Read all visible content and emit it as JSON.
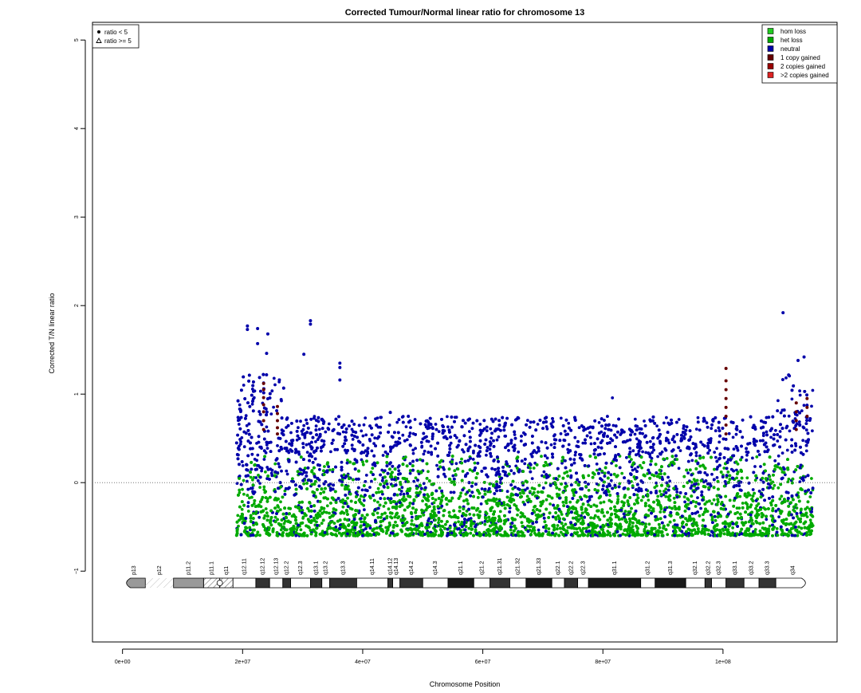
{
  "chart_data": {
    "type": "scatter",
    "title": "Corrected Tumour/Normal linear ratio for chromosome  13",
    "xlabel": "Chromosome Position",
    "ylabel": "Corrected T/N linear ratio",
    "xlim": [
      -5000000,
      119000000
    ],
    "ylim": [
      -1.8,
      5.2
    ],
    "x_ticks": [
      0,
      20000000,
      40000000,
      60000000,
      80000000,
      100000000
    ],
    "x_tick_labels": [
      "0e+00",
      "2e+07",
      "4e+07",
      "6e+07",
      "8e+07",
      "1e+08"
    ],
    "y_ticks": [
      -1,
      0,
      1,
      2,
      3,
      4,
      5
    ],
    "y_tick_labels": [
      "−1",
      "0",
      "1",
      "2",
      "3",
      "4",
      "5"
    ],
    "reference_line_y": 0,
    "shape_legend": {
      "position": "top-left",
      "entries": [
        {
          "label": "ratio < 5",
          "symbol": "filled-circle"
        },
        {
          "label": "ratio >= 5",
          "symbol": "open-triangle"
        }
      ]
    },
    "legend": {
      "position": "top-right",
      "entries": [
        {
          "label": "hom loss",
          "color": "#22cc22"
        },
        {
          "label": "het loss",
          "color": "#00aa00"
        },
        {
          "label": "neutral",
          "color": "#0000aa"
        },
        {
          "label": "1 copy gained",
          "color": "#660000"
        },
        {
          "label": "2 copies gained",
          "color": "#990000"
        },
        {
          "label": ">2 copies gained",
          "color": "#dd2222"
        }
      ]
    },
    "data_x_range": [
      19000000,
      115000000
    ],
    "outliers": [
      {
        "x": 20800000,
        "y": 1.77
      },
      {
        "x": 20800000,
        "y": 1.73
      },
      {
        "x": 22500000,
        "y": 1.74
      },
      {
        "x": 22500000,
        "y": 1.57
      },
      {
        "x": 24200000,
        "y": 1.68
      },
      {
        "x": 24000000,
        "y": 1.46
      },
      {
        "x": 31300000,
        "y": 1.83
      },
      {
        "x": 31300000,
        "y": 1.79
      },
      {
        "x": 30200000,
        "y": 1.45
      },
      {
        "x": 36200000,
        "y": 1.35
      },
      {
        "x": 36200000,
        "y": 1.3
      },
      {
        "x": 36200000,
        "y": 1.16
      },
      {
        "x": 110000000,
        "y": 1.92
      },
      {
        "x": 113500000,
        "y": 1.42
      },
      {
        "x": 112500000,
        "y": 1.38
      }
    ],
    "gained_clusters": [
      {
        "x": 23500000,
        "y_values": [
          0.6,
          0.7,
          0.8,
          0.88,
          0.96,
          1.05,
          1.12
        ]
      },
      {
        "x": 25800000,
        "y_values": [
          0.55,
          0.62,
          0.7,
          0.78,
          0.86
        ]
      },
      {
        "x": 100500000,
        "y_values": [
          0.55,
          0.65,
          0.75,
          0.85,
          0.95,
          1.05,
          1.15,
          1.29
        ]
      },
      {
        "x": 112200000,
        "y_values": [
          0.6,
          0.7,
          0.8,
          0.9
        ]
      },
      {
        "x": 114000000,
        "y_values": [
          0.75,
          0.85,
          0.95
        ]
      }
    ],
    "ideogram": {
      "bands": [
        {
          "name": "p13",
          "start": 0,
          "end": 3800000,
          "stain": "gpos50"
        },
        {
          "name": "p12",
          "start": 3800000,
          "end": 8500000,
          "stain": "stalk"
        },
        {
          "name": "p11.2",
          "start": 8500000,
          "end": 13500000,
          "stain": "gpos50"
        },
        {
          "name": "p11.1",
          "start": 13500000,
          "end": 16200000,
          "stain": "acen"
        },
        {
          "name": "q11",
          "start": 16200000,
          "end": 18400000,
          "stain": "acen"
        },
        {
          "name": "q12.11",
          "start": 18400000,
          "end": 22200000,
          "stain": "gneg"
        },
        {
          "name": "q12.12",
          "start": 22200000,
          "end": 24500000,
          "stain": "gpos75"
        },
        {
          "name": "q12.13",
          "start": 24500000,
          "end": 26700000,
          "stain": "gneg"
        },
        {
          "name": "q12.2",
          "start": 26700000,
          "end": 28000000,
          "stain": "gpos75"
        },
        {
          "name": "q12.3",
          "start": 28000000,
          "end": 31300000,
          "stain": "gneg"
        },
        {
          "name": "q13.1",
          "start": 31300000,
          "end": 33200000,
          "stain": "gpos75"
        },
        {
          "name": "q13.2",
          "start": 33200000,
          "end": 34500000,
          "stain": "gneg"
        },
        {
          "name": "q13.3",
          "start": 34500000,
          "end": 39000000,
          "stain": "gpos75"
        },
        {
          "name": "q14.11",
          "start": 39000000,
          "end": 44200000,
          "stain": "gneg"
        },
        {
          "name": "q14.12",
          "start": 44200000,
          "end": 45000000,
          "stain": "gpos75"
        },
        {
          "name": "q14.13",
          "start": 45000000,
          "end": 46200000,
          "stain": "gneg"
        },
        {
          "name": "q14.2",
          "start": 46200000,
          "end": 50000000,
          "stain": "gpos75"
        },
        {
          "name": "q14.3",
          "start": 50000000,
          "end": 54200000,
          "stain": "gneg"
        },
        {
          "name": "q21.1",
          "start": 54200000,
          "end": 58500000,
          "stain": "gpos100"
        },
        {
          "name": "q21.2",
          "start": 58500000,
          "end": 61200000,
          "stain": "gneg"
        },
        {
          "name": "q21.31",
          "start": 61200000,
          "end": 64500000,
          "stain": "gpos75"
        },
        {
          "name": "q21.32",
          "start": 64500000,
          "end": 67200000,
          "stain": "gneg"
        },
        {
          "name": "q21.33",
          "start": 67200000,
          "end": 71500000,
          "stain": "gpos100"
        },
        {
          "name": "q22.1",
          "start": 71500000,
          "end": 73600000,
          "stain": "gneg"
        },
        {
          "name": "q22.2",
          "start": 73600000,
          "end": 75800000,
          "stain": "gpos75"
        },
        {
          "name": "q22.3",
          "start": 75800000,
          "end": 77600000,
          "stain": "gneg"
        },
        {
          "name": "q31.1",
          "start": 77600000,
          "end": 86300000,
          "stain": "gpos100"
        },
        {
          "name": "q31.2",
          "start": 86300000,
          "end": 88700000,
          "stain": "gneg"
        },
        {
          "name": "q31.3",
          "start": 88700000,
          "end": 93800000,
          "stain": "gpos100"
        },
        {
          "name": "q32.1",
          "start": 93800000,
          "end": 97000000,
          "stain": "gneg"
        },
        {
          "name": "q32.2",
          "start": 97000000,
          "end": 98100000,
          "stain": "gpos75"
        },
        {
          "name": "q32.3",
          "start": 98100000,
          "end": 100500000,
          "stain": "gneg"
        },
        {
          "name": "q33.1",
          "start": 100500000,
          "end": 103500000,
          "stain": "gpos75"
        },
        {
          "name": "q33.2",
          "start": 103500000,
          "end": 106000000,
          "stain": "gneg"
        },
        {
          "name": "q33.3",
          "start": 106000000,
          "end": 108800000,
          "stain": "gpos75"
        },
        {
          "name": "q34",
          "start": 108800000,
          "end": 114400000,
          "stain": "gneg"
        }
      ]
    }
  }
}
